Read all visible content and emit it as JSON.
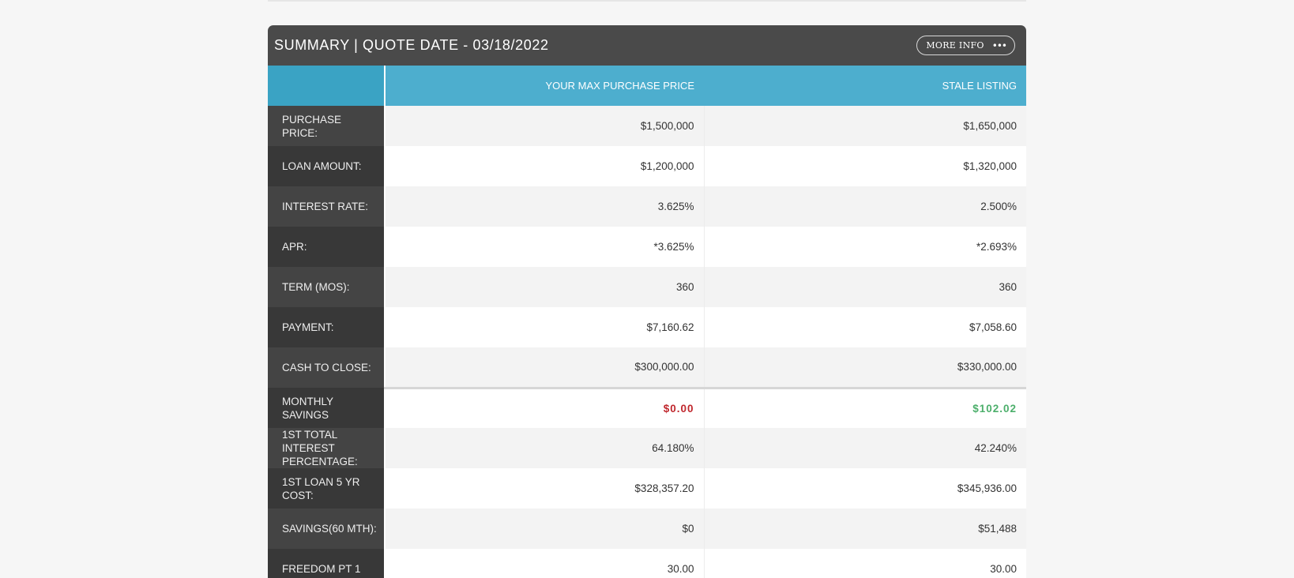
{
  "header": {
    "title": "SUMMARY | QUOTE DATE - 03/18/2022",
    "more_info_label": "MORE INFO",
    "more_info_icon": "ellipsis-icon"
  },
  "columns": [
    "",
    "YOUR MAX PURCHASE PRICE",
    "STALE LISTING"
  ],
  "rows": [
    {
      "label": "PURCHASE PRICE:",
      "values": [
        "$1,500,000",
        "$1,650,000"
      ]
    },
    {
      "label": "LOAN AMOUNT:",
      "values": [
        "$1,200,000",
        "$1,320,000"
      ]
    },
    {
      "label": "INTEREST RATE:",
      "values": [
        "3.625%",
        "2.500%"
      ]
    },
    {
      "label": "APR:",
      "values": [
        "*3.625%",
        "*2.693%"
      ]
    },
    {
      "label": "TERM (MOS):",
      "values": [
        "360",
        "360"
      ]
    },
    {
      "label": "PAYMENT:",
      "values": [
        "$7,160.62",
        "$7,058.60"
      ]
    },
    {
      "label": "CASH TO CLOSE:",
      "values": [
        "$300,000.00",
        "$330,000.00"
      ]
    },
    {
      "label": "MONTHLY SAVINGS",
      "values": [
        "$0.00",
        "$102.02"
      ]
    },
    {
      "label": "1ST TOTAL INTEREST PERCENTAGE:",
      "values": [
        "64.180%",
        "42.240%"
      ]
    },
    {
      "label": "1ST LOAN 5 YR COST:",
      "values": [
        "$328,357.20",
        "$345,936.00"
      ]
    },
    {
      "label": "SAVINGS(60 MTH):",
      "values": [
        "$0",
        "$51,488"
      ]
    },
    {
      "label": "FREEDOM PT 1",
      "values": [
        "30.00",
        "30.00"
      ]
    }
  ],
  "colors": {
    "header_bg": "#4a4a4a",
    "column_header_bg": "#4daece",
    "label_bg": "#444444",
    "savings_negative": "#c0272d",
    "savings_positive": "#4caf6b"
  }
}
